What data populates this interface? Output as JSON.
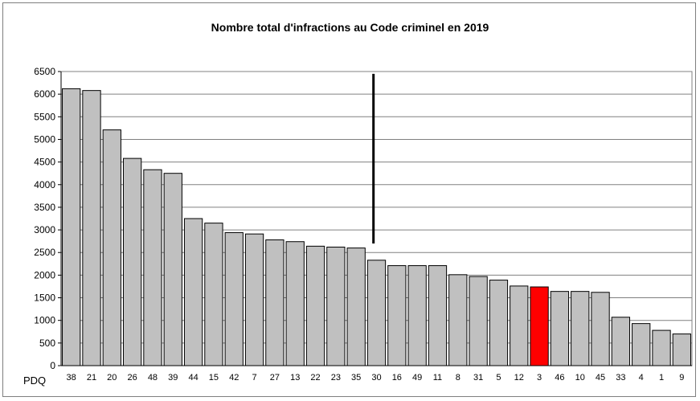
{
  "chart_data": {
    "type": "bar",
    "title": "Nombre total d'infractions au Code criminel en 2019",
    "xlabel": "PDQ",
    "ylabel": "",
    "ylim": [
      0,
      6500
    ],
    "ytick_step": 500,
    "grid": true,
    "categories": [
      "38",
      "21",
      "20",
      "26",
      "48",
      "39",
      "44",
      "15",
      "42",
      "7",
      "27",
      "13",
      "22",
      "23",
      "35",
      "30",
      "16",
      "49",
      "11",
      "8",
      "31",
      "5",
      "12",
      "3",
      "46",
      "10",
      "45",
      "33",
      "4",
      "1",
      "9"
    ],
    "values": [
      6120,
      6080,
      5210,
      4580,
      4330,
      4250,
      3250,
      3150,
      2940,
      2910,
      2780,
      2740,
      2640,
      2620,
      2600,
      2330,
      2210,
      2210,
      2210,
      2010,
      1970,
      1890,
      1760,
      1740,
      1640,
      1640,
      1620,
      1070,
      930,
      780,
      700
    ],
    "highlight_category": "3",
    "bar_color": "#c0c0c0",
    "highlight_color": "#ff0000",
    "marker_line": {
      "after_category": "30",
      "from_value": 2700,
      "to_value": 6450
    }
  }
}
